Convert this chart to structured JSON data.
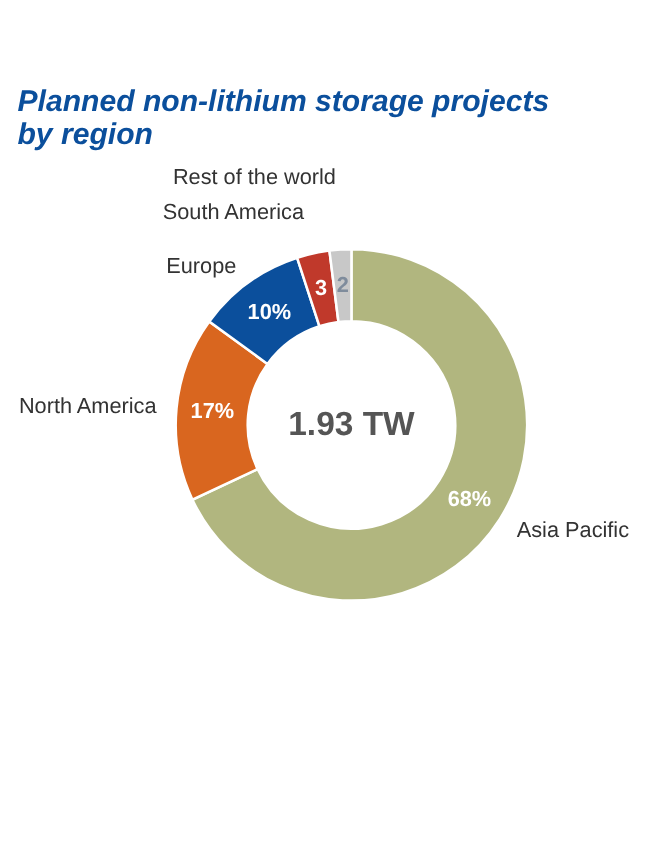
{
  "chart_data": {
    "type": "donut",
    "title": "Planned non-lithium storage projects by region",
    "categories": [
      "Asia Pacific",
      "North America",
      "Europe",
      "South America",
      "Rest of the world"
    ],
    "values": [
      68,
      17,
      10,
      3,
      2
    ],
    "colors": [
      "#b1b67f",
      "#d9661f",
      "#0b4f9c",
      "#c0392b",
      "#c8c8c8"
    ],
    "value_labels": [
      "68%",
      "17%",
      "10%",
      "3",
      "2"
    ],
    "annotations": [
      "1.93 TW"
    ],
    "legend": false
  }
}
